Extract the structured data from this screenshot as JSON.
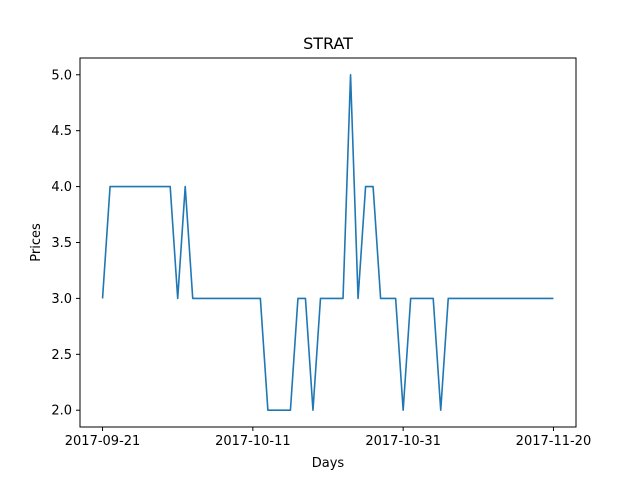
{
  "chart_data": {
    "type": "line",
    "title": "STRAT",
    "xlabel": "Days",
    "ylabel": "Prices",
    "x_ticks": [
      "2017-09-21",
      "2017-10-11",
      "2017-10-31",
      "2017-11-20"
    ],
    "y_ticks": [
      "2.0",
      "2.5",
      "3.0",
      "3.5",
      "4.0",
      "4.5",
      "5.0"
    ],
    "xlim": [
      "2017-09-18",
      "2017-11-23"
    ],
    "ylim": [
      1.85,
      5.15
    ],
    "grid": false,
    "line_color": "#1f77b4",
    "series": [
      {
        "x": [
          "2017-09-21",
          "2017-09-22",
          "2017-09-23",
          "2017-09-24",
          "2017-09-25",
          "2017-09-26",
          "2017-09-27",
          "2017-09-28",
          "2017-09-29",
          "2017-09-30",
          "2017-10-01",
          "2017-10-02",
          "2017-10-03",
          "2017-10-04",
          "2017-10-05",
          "2017-10-06",
          "2017-10-07",
          "2017-10-08",
          "2017-10-09",
          "2017-10-10",
          "2017-10-11",
          "2017-10-12",
          "2017-10-13",
          "2017-10-14",
          "2017-10-15",
          "2017-10-16",
          "2017-10-17",
          "2017-10-18",
          "2017-10-19",
          "2017-10-20",
          "2017-10-21",
          "2017-10-22",
          "2017-10-23",
          "2017-10-24",
          "2017-10-25",
          "2017-10-26",
          "2017-10-27",
          "2017-10-28",
          "2017-10-29",
          "2017-10-30",
          "2017-10-31",
          "2017-11-01",
          "2017-11-02",
          "2017-11-03",
          "2017-11-04",
          "2017-11-05",
          "2017-11-06",
          "2017-11-07",
          "2017-11-08",
          "2017-11-09",
          "2017-11-10",
          "2017-11-11",
          "2017-11-12",
          "2017-11-13",
          "2017-11-14",
          "2017-11-15",
          "2017-11-16",
          "2017-11-17",
          "2017-11-18",
          "2017-11-19",
          "2017-11-20"
        ],
        "y": [
          3,
          4,
          4,
          4,
          4,
          4,
          4,
          4,
          4,
          4,
          3,
          4,
          3,
          3,
          3,
          3,
          3,
          3,
          3,
          3,
          3,
          3,
          2,
          2,
          2,
          2,
          3,
          3,
          2,
          3,
          3,
          3,
          3,
          5,
          3,
          4,
          4,
          3,
          3,
          3,
          2,
          3,
          3,
          3,
          3,
          2,
          3,
          3,
          3,
          3,
          3,
          3,
          3,
          3,
          3,
          3,
          3,
          3,
          3,
          3,
          3
        ]
      }
    ]
  }
}
